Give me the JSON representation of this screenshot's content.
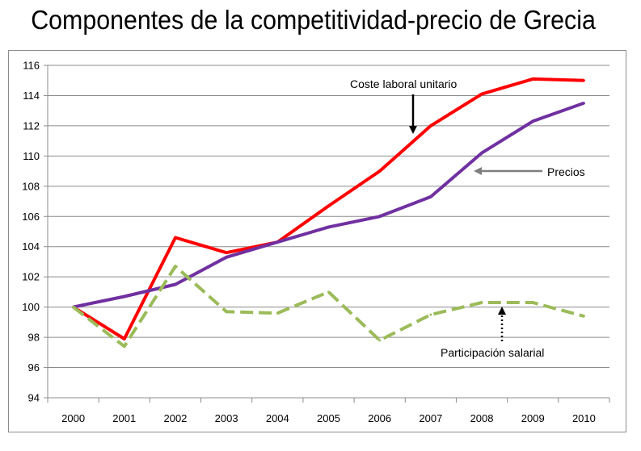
{
  "title": "Componentes de la competitividad-precio de Grecia",
  "chart_data": {
    "type": "line",
    "x": [
      "2000",
      "2001",
      "2002",
      "2003",
      "2004",
      "2005",
      "2006",
      "2007",
      "2008",
      "2009",
      "2010"
    ],
    "ylim": [
      94,
      116
    ],
    "yticks": [
      94,
      96,
      98,
      100,
      102,
      104,
      106,
      108,
      110,
      112,
      114,
      116
    ],
    "grid": true,
    "series": [
      {
        "name": "Coste laboral unitario",
        "color": "#ff0000",
        "dash": "solid",
        "values": [
          100,
          97.9,
          104.6,
          103.6,
          104.3,
          106.7,
          109.0,
          112.0,
          114.1,
          115.1,
          115.0
        ]
      },
      {
        "name": "Precios",
        "color": "#7030a0",
        "dash": "solid",
        "values": [
          100,
          100.7,
          101.5,
          103.3,
          104.3,
          105.3,
          106.0,
          107.3,
          110.2,
          112.3,
          113.5
        ]
      },
      {
        "name": "Participación salarial",
        "color": "#9bbb59",
        "dash": "dashed",
        "values": [
          100,
          97.4,
          102.7,
          99.7,
          99.6,
          101.0,
          97.8,
          99.5,
          100.3,
          100.3,
          99.4
        ]
      }
    ],
    "annotations": [
      {
        "text": "Coste laboral unitario",
        "arrow": "solid-down",
        "arrow_color": "#000000"
      },
      {
        "text": "Precios",
        "arrow": "solid-left",
        "arrow_color": "#7f7f7f"
      },
      {
        "text": "Participación salarial",
        "arrow": "dotted-up",
        "arrow_color": "#000000"
      }
    ]
  }
}
